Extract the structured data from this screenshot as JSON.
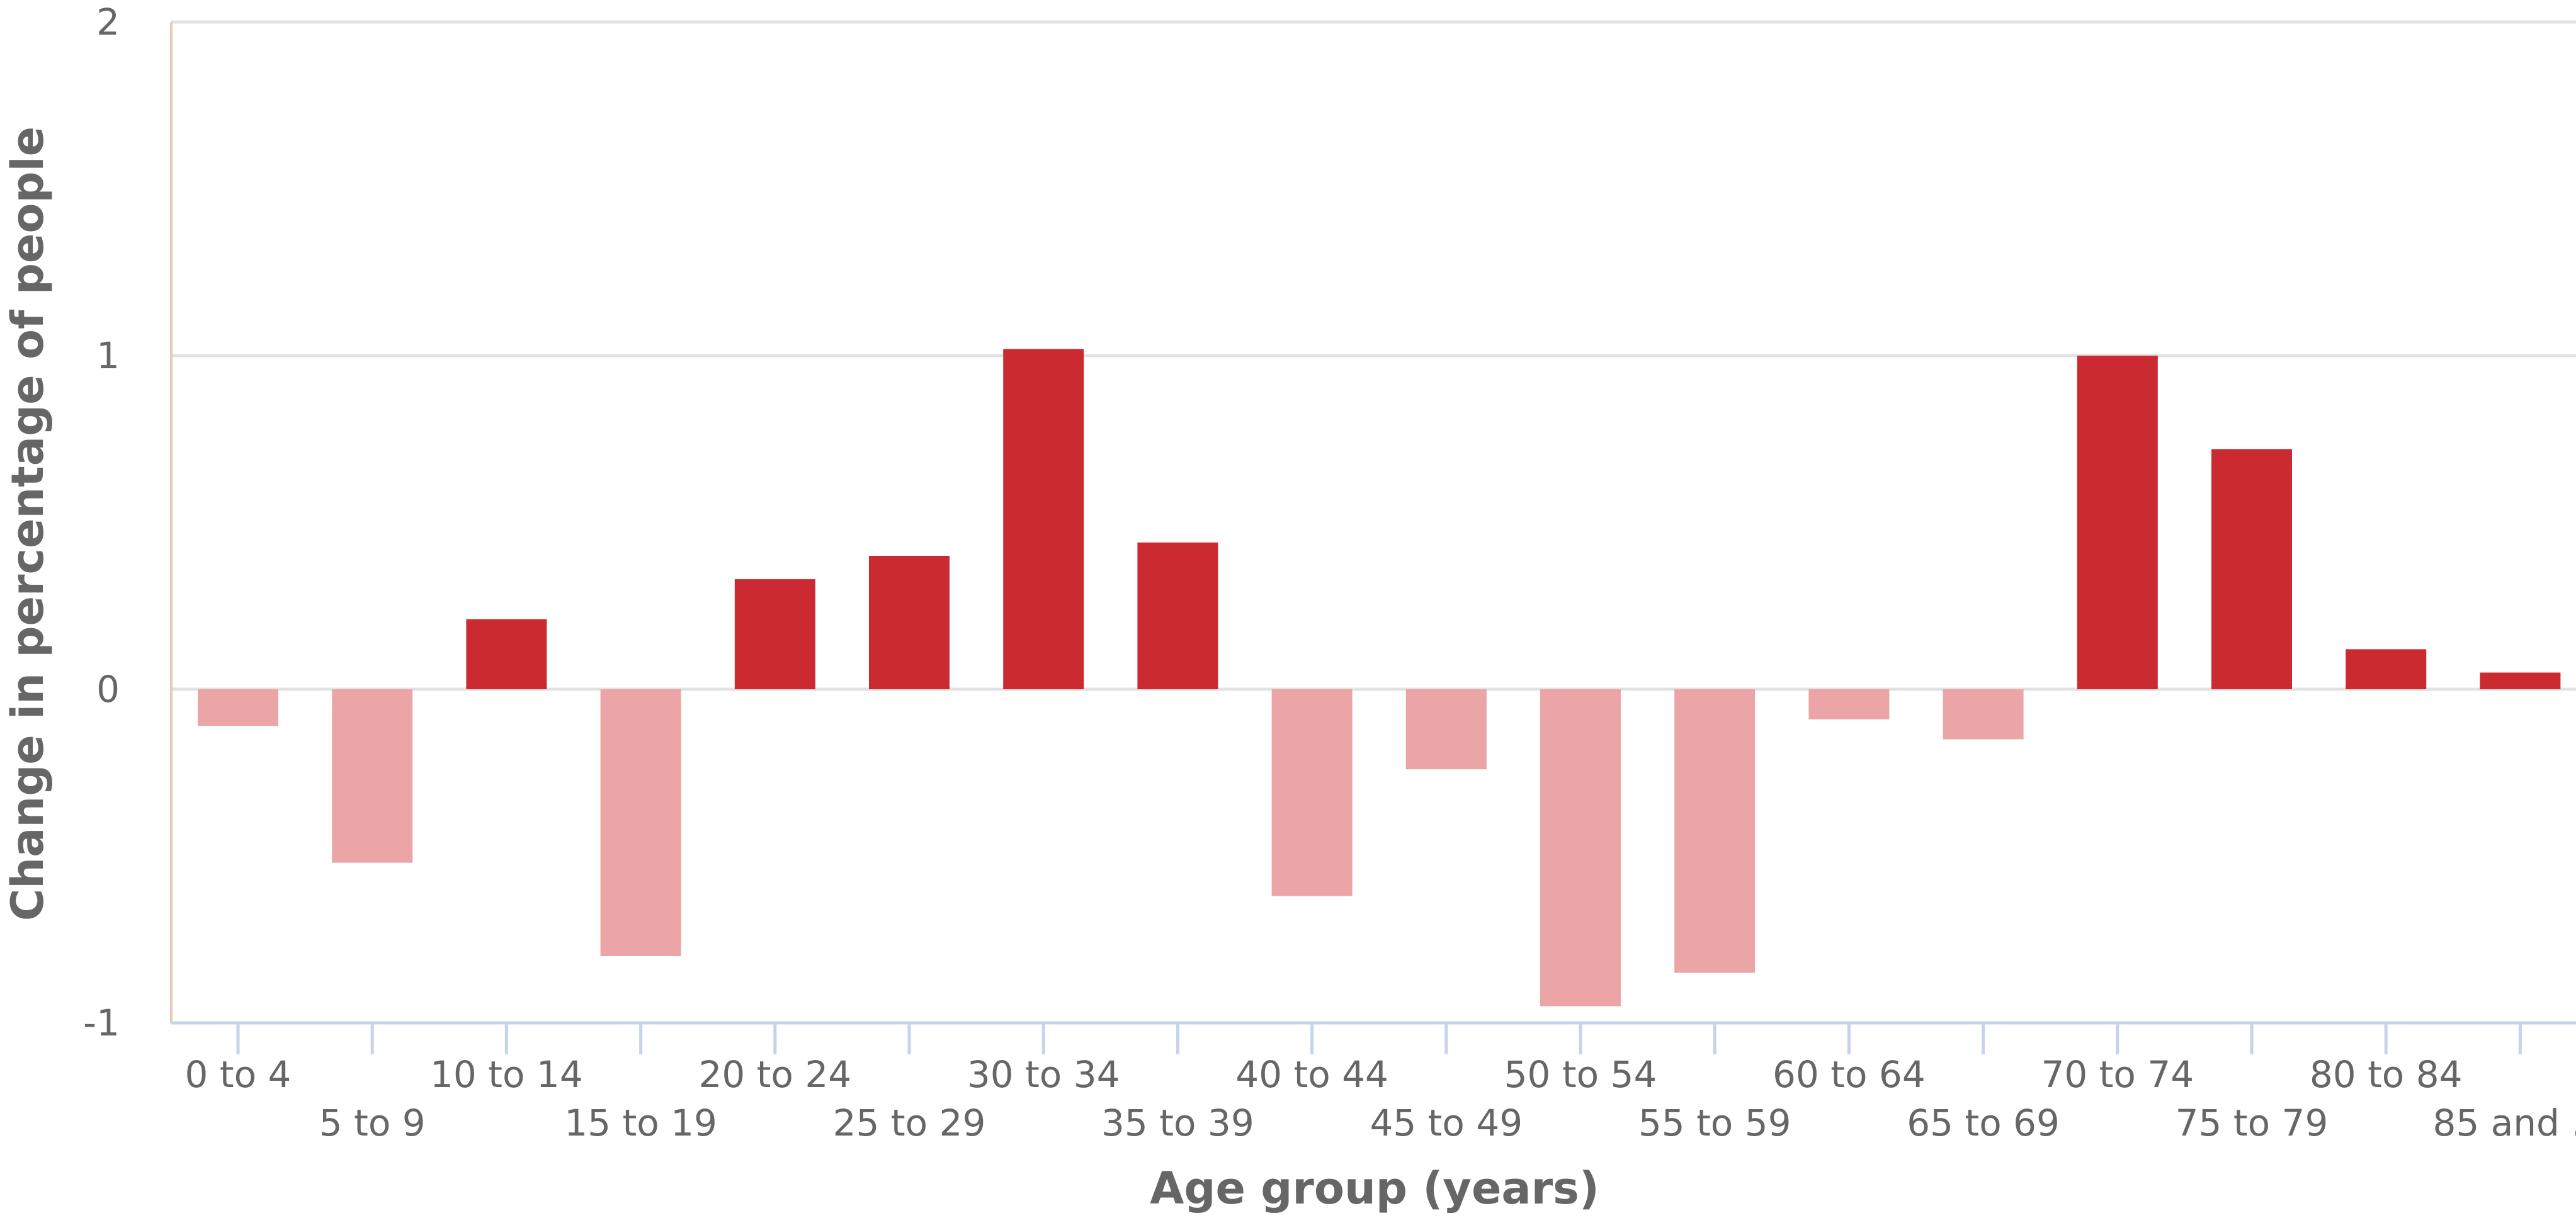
{
  "chart_data": {
    "type": "bar",
    "title": "",
    "xlabel": "Age group (years)",
    "ylabel": "Change in percentage of people",
    "ylim": [
      -1,
      2
    ],
    "yticks": [
      "-1",
      "0",
      "1",
      "2"
    ],
    "grid": true,
    "categories": [
      "0 to 4",
      "5 to 9",
      "10 to 14",
      "15 to 19",
      "20 to 24",
      "25 to 29",
      "30 to 34",
      "35 to 39",
      "40 to 44",
      "45 to 49",
      "50 to 54",
      "55 to 59",
      "60 to 64",
      "65 to 69",
      "70 to 74",
      "75 to 79",
      "80 to 84",
      "85 and …"
    ],
    "values": [
      -0.11,
      -0.52,
      0.21,
      -0.8,
      0.33,
      0.4,
      1.02,
      0.44,
      -0.62,
      -0.24,
      -0.95,
      -0.85,
      -0.09,
      -0.15,
      1.0,
      0.72,
      0.12,
      0.05
    ],
    "colors": {
      "positive": "#cc2a31",
      "negative": "#eba5a6",
      "grid": "#e2e2e2",
      "axis": "#c7d3ec",
      "left_axis": "#e8c8b8"
    }
  }
}
